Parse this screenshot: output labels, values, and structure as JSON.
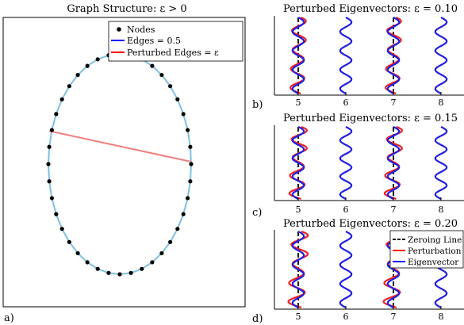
{
  "panel_a": {
    "title": "Graph Structure: ε > 0",
    "label": "a)",
    "legend": {
      "nodes": "Nodes",
      "edges": "Edges = 0.5",
      "perturbed": "Perturbed Edges = ε"
    }
  },
  "panels": [
    {
      "label": "b)",
      "title": "Perturbed Eigenvectors: ε = 0.10"
    },
    {
      "label": "c)",
      "title": "Perturbed Eigenvectors: ε = 0.15"
    },
    {
      "label": "d)",
      "title": "Perturbed Eigenvectors: ε = 0.20"
    }
  ],
  "legend_right": {
    "zeroing": "Zeroing Line",
    "perturbation": "Perturbation",
    "eigenvector": "Eigenvector"
  },
  "colors": {
    "node": "#000000",
    "edge": "#7fbfe3",
    "perturbed_edge": "#f08080",
    "legend_edge": "#0000ff",
    "legend_perturbed": "#ff0000",
    "eigenvector": "#2020e0",
    "perturbation": "#ee2020",
    "zeroing": "#000000"
  },
  "chart_data": [
    {
      "type": "scatter",
      "title": "Graph Structure: ε > 0",
      "nodes": 40,
      "ring": "ellipse",
      "perturbed_edge": {
        "from_node": 10,
        "to_node": 30
      },
      "legend_placement": "top-right"
    },
    {
      "type": "line",
      "title": "Perturbed Eigenvectors: ε = 0.10",
      "epsilon": 0.1,
      "x_ticks": [
        "5",
        "6",
        "7",
        "8"
      ],
      "series": [
        {
          "name": "Eigenvector",
          "x": [
            5,
            6,
            7,
            8
          ],
          "cycles": 4,
          "amplitude": 0.12
        },
        {
          "name": "Perturbation",
          "x": [
            5,
            7
          ],
          "deviation": 0.03
        }
      ]
    },
    {
      "type": "line",
      "title": "Perturbed Eigenvectors: ε = 0.15",
      "epsilon": 0.15,
      "x_ticks": [
        "5",
        "6",
        "7",
        "8"
      ],
      "series": [
        {
          "name": "Eigenvector",
          "x": [
            5,
            6,
            7,
            8
          ],
          "cycles": 4,
          "amplitude": 0.12
        },
        {
          "name": "Perturbation",
          "x": [
            5,
            7
          ],
          "deviation": 0.045
        }
      ]
    },
    {
      "type": "line",
      "title": "Perturbed Eigenvectors: ε = 0.20",
      "epsilon": 0.2,
      "x_ticks": [
        "5",
        "6",
        "7",
        "8"
      ],
      "legend_placement": "top-right",
      "series": [
        {
          "name": "Eigenvector",
          "x": [
            5,
            6,
            7,
            8
          ],
          "cycles": 4,
          "amplitude": 0.12
        },
        {
          "name": "Perturbation",
          "x": [
            5,
            7
          ],
          "deviation": 0.06
        },
        {
          "name": "Zeroing Line",
          "x": [
            5,
            6,
            7,
            8
          ]
        }
      ]
    }
  ]
}
